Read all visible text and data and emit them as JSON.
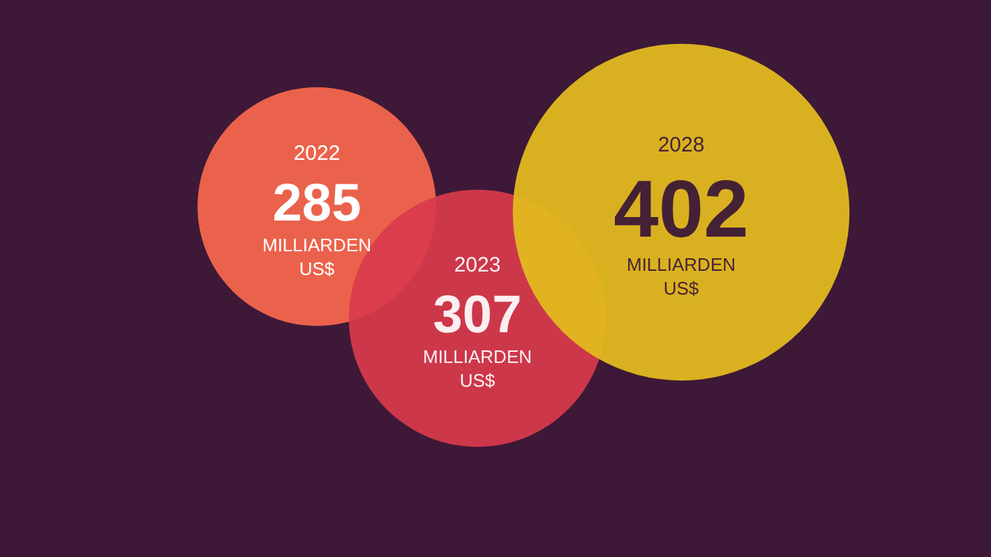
{
  "chart_data": {
    "type": "other",
    "categories": [
      "2022",
      "2023",
      "2028"
    ],
    "values": [
      285,
      307,
      402
    ],
    "value_labels": [
      "285",
      "307",
      "402"
    ],
    "colors": [
      "#eb624c",
      "#d9394c",
      "#e1b91f"
    ],
    "annotations": [
      "MILLIARDEN US$",
      "MILLIARDEN US$",
      "MILLIARDEN US$"
    ]
  }
}
